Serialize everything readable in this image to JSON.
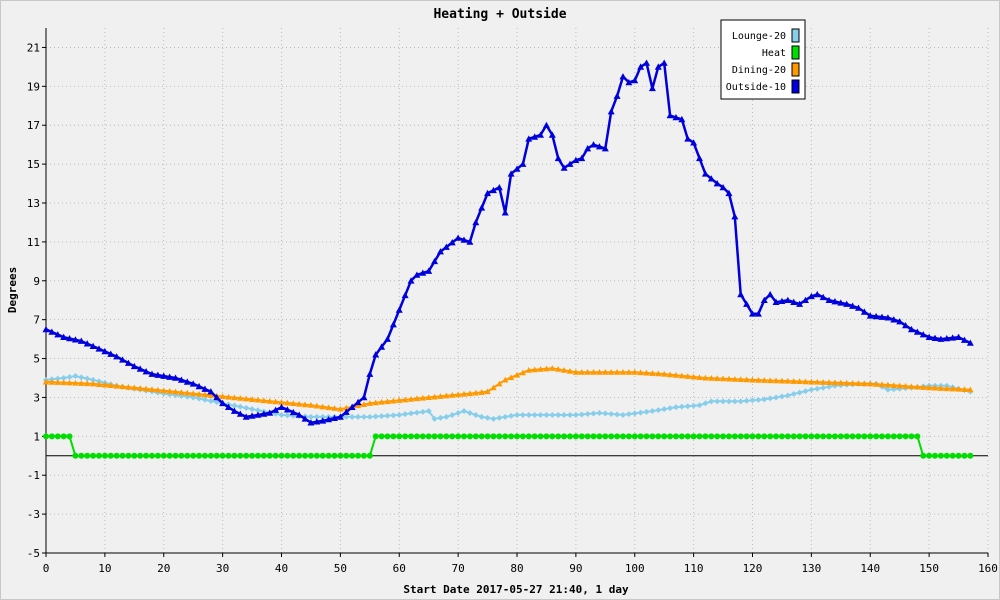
{
  "chart_data": {
    "type": "line",
    "title": "Heating + Outside",
    "xlabel": "Start Date 2017-05-27 21:40, 1 day",
    "ylabel": "Degrees",
    "xlim": [
      0,
      160
    ],
    "ylim": [
      -5,
      22
    ],
    "x_ticks": [
      0,
      10,
      20,
      30,
      40,
      50,
      60,
      70,
      80,
      90,
      100,
      110,
      120,
      130,
      140,
      150,
      160
    ],
    "y_ticks": [
      -5,
      -3,
      -1,
      1,
      3,
      5,
      7,
      9,
      11,
      13,
      15,
      17,
      19,
      21
    ],
    "grid": true,
    "legend_position": "top-right",
    "series": [
      {
        "name": "Lounge-20",
        "color": "#87ceeb",
        "marker": "diamond",
        "points": [
          [
            0,
            3.9
          ],
          [
            3,
            4.0
          ],
          [
            5,
            4.1
          ],
          [
            8,
            3.9
          ],
          [
            12,
            3.6
          ],
          [
            16,
            3.4
          ],
          [
            20,
            3.2
          ],
          [
            25,
            3.0
          ],
          [
            30,
            2.7
          ],
          [
            35,
            2.4
          ],
          [
            40,
            2.1
          ],
          [
            45,
            2.0
          ],
          [
            50,
            2.0
          ],
          [
            55,
            2.0
          ],
          [
            60,
            2.1
          ],
          [
            65,
            2.3
          ],
          [
            66,
            1.9
          ],
          [
            68,
            2.0
          ],
          [
            71,
            2.3
          ],
          [
            74,
            2.0
          ],
          [
            76,
            1.9
          ],
          [
            80,
            2.1
          ],
          [
            85,
            2.1
          ],
          [
            90,
            2.1
          ],
          [
            94,
            2.2
          ],
          [
            98,
            2.1
          ],
          [
            103,
            2.3
          ],
          [
            107,
            2.5
          ],
          [
            111,
            2.6
          ],
          [
            113,
            2.8
          ],
          [
            118,
            2.8
          ],
          [
            122,
            2.9
          ],
          [
            126,
            3.1
          ],
          [
            130,
            3.4
          ],
          [
            134,
            3.6
          ],
          [
            138,
            3.7
          ],
          [
            141,
            3.7
          ],
          [
            143,
            3.4
          ],
          [
            147,
            3.5
          ],
          [
            150,
            3.6
          ],
          [
            153,
            3.6
          ],
          [
            157,
            3.3
          ]
        ]
      },
      {
        "name": "Heat",
        "color": "#00dd00",
        "marker": "circle",
        "points": [
          [
            0,
            1
          ],
          [
            4,
            1
          ],
          [
            5,
            0
          ],
          [
            55,
            0
          ],
          [
            56,
            1
          ],
          [
            148,
            1
          ],
          [
            149,
            0
          ],
          [
            157,
            0
          ]
        ]
      },
      {
        "name": "Dining-20",
        "color": "#ff9900",
        "marker": "triangle",
        "points": [
          [
            0,
            3.8
          ],
          [
            8,
            3.7
          ],
          [
            15,
            3.5
          ],
          [
            25,
            3.2
          ],
          [
            35,
            2.9
          ],
          [
            45,
            2.6
          ],
          [
            50,
            2.4
          ],
          [
            55,
            2.7
          ],
          [
            65,
            3.0
          ],
          [
            72,
            3.2
          ],
          [
            75,
            3.3
          ],
          [
            78,
            3.9
          ],
          [
            82,
            4.4
          ],
          [
            86,
            4.5
          ],
          [
            90,
            4.3
          ],
          [
            95,
            4.3
          ],
          [
            100,
            4.3
          ],
          [
            105,
            4.2
          ],
          [
            112,
            4.0
          ],
          [
            120,
            3.9
          ],
          [
            130,
            3.8
          ],
          [
            140,
            3.7
          ],
          [
            150,
            3.5
          ],
          [
            157,
            3.4
          ]
        ]
      },
      {
        "name": "Outside-10",
        "color": "#0000dd",
        "marker": "triangle",
        "points": [
          [
            0,
            6.5
          ],
          [
            3,
            6.1
          ],
          [
            6,
            5.9
          ],
          [
            9,
            5.5
          ],
          [
            12,
            5.1
          ],
          [
            15,
            4.6
          ],
          [
            18,
            4.2
          ],
          [
            20,
            4.1
          ],
          [
            22,
            4.0
          ],
          [
            25,
            3.7
          ],
          [
            28,
            3.3
          ],
          [
            30,
            2.7
          ],
          [
            32,
            2.3
          ],
          [
            34,
            2.0
          ],
          [
            38,
            2.2
          ],
          [
            40,
            2.5
          ],
          [
            43,
            2.1
          ],
          [
            45,
            1.7
          ],
          [
            47,
            1.8
          ],
          [
            50,
            2.0
          ],
          [
            52,
            2.5
          ],
          [
            54,
            3.0
          ],
          [
            55,
            4.2
          ],
          [
            56,
            5.2
          ],
          [
            58,
            6.0
          ],
          [
            60,
            7.5
          ],
          [
            62,
            9.0
          ],
          [
            63,
            9.3
          ],
          [
            65,
            9.5
          ],
          [
            67,
            10.5
          ],
          [
            70,
            11.2
          ],
          [
            72,
            11.0
          ],
          [
            73,
            12.0
          ],
          [
            75,
            13.5
          ],
          [
            77,
            13.8
          ],
          [
            78,
            12.5
          ],
          [
            79,
            14.5
          ],
          [
            81,
            15.0
          ],
          [
            82,
            16.3
          ],
          [
            84,
            16.5
          ],
          [
            85,
            17.0
          ],
          [
            86,
            16.5
          ],
          [
            87,
            15.3
          ],
          [
            88,
            14.8
          ],
          [
            90,
            15.2
          ],
          [
            91,
            15.3
          ],
          [
            92,
            15.8
          ],
          [
            93,
            16.0
          ],
          [
            95,
            15.8
          ],
          [
            96,
            17.7
          ],
          [
            97,
            18.5
          ],
          [
            98,
            19.5
          ],
          [
            99,
            19.2
          ],
          [
            100,
            19.3
          ],
          [
            101,
            20.0
          ],
          [
            102,
            20.2
          ],
          [
            103,
            18.9
          ],
          [
            104,
            20.0
          ],
          [
            105,
            20.2
          ],
          [
            106,
            17.5
          ],
          [
            108,
            17.3
          ],
          [
            109,
            16.3
          ],
          [
            110,
            16.1
          ],
          [
            112,
            14.5
          ],
          [
            114,
            14.0
          ],
          [
            115,
            13.8
          ],
          [
            116,
            13.5
          ],
          [
            117,
            12.3
          ],
          [
            118,
            8.3
          ],
          [
            119,
            7.8
          ],
          [
            120,
            7.3
          ],
          [
            121,
            7.3
          ],
          [
            122,
            8.0
          ],
          [
            123,
            8.3
          ],
          [
            124,
            7.9
          ],
          [
            126,
            8.0
          ],
          [
            128,
            7.8
          ],
          [
            130,
            8.2
          ],
          [
            131,
            8.3
          ],
          [
            133,
            8.0
          ],
          [
            136,
            7.8
          ],
          [
            138,
            7.6
          ],
          [
            140,
            7.2
          ],
          [
            143,
            7.1
          ],
          [
            145,
            6.9
          ],
          [
            147,
            6.5
          ],
          [
            150,
            6.1
          ],
          [
            152,
            6.0
          ],
          [
            155,
            6.1
          ],
          [
            157,
            5.8
          ]
        ]
      }
    ]
  }
}
